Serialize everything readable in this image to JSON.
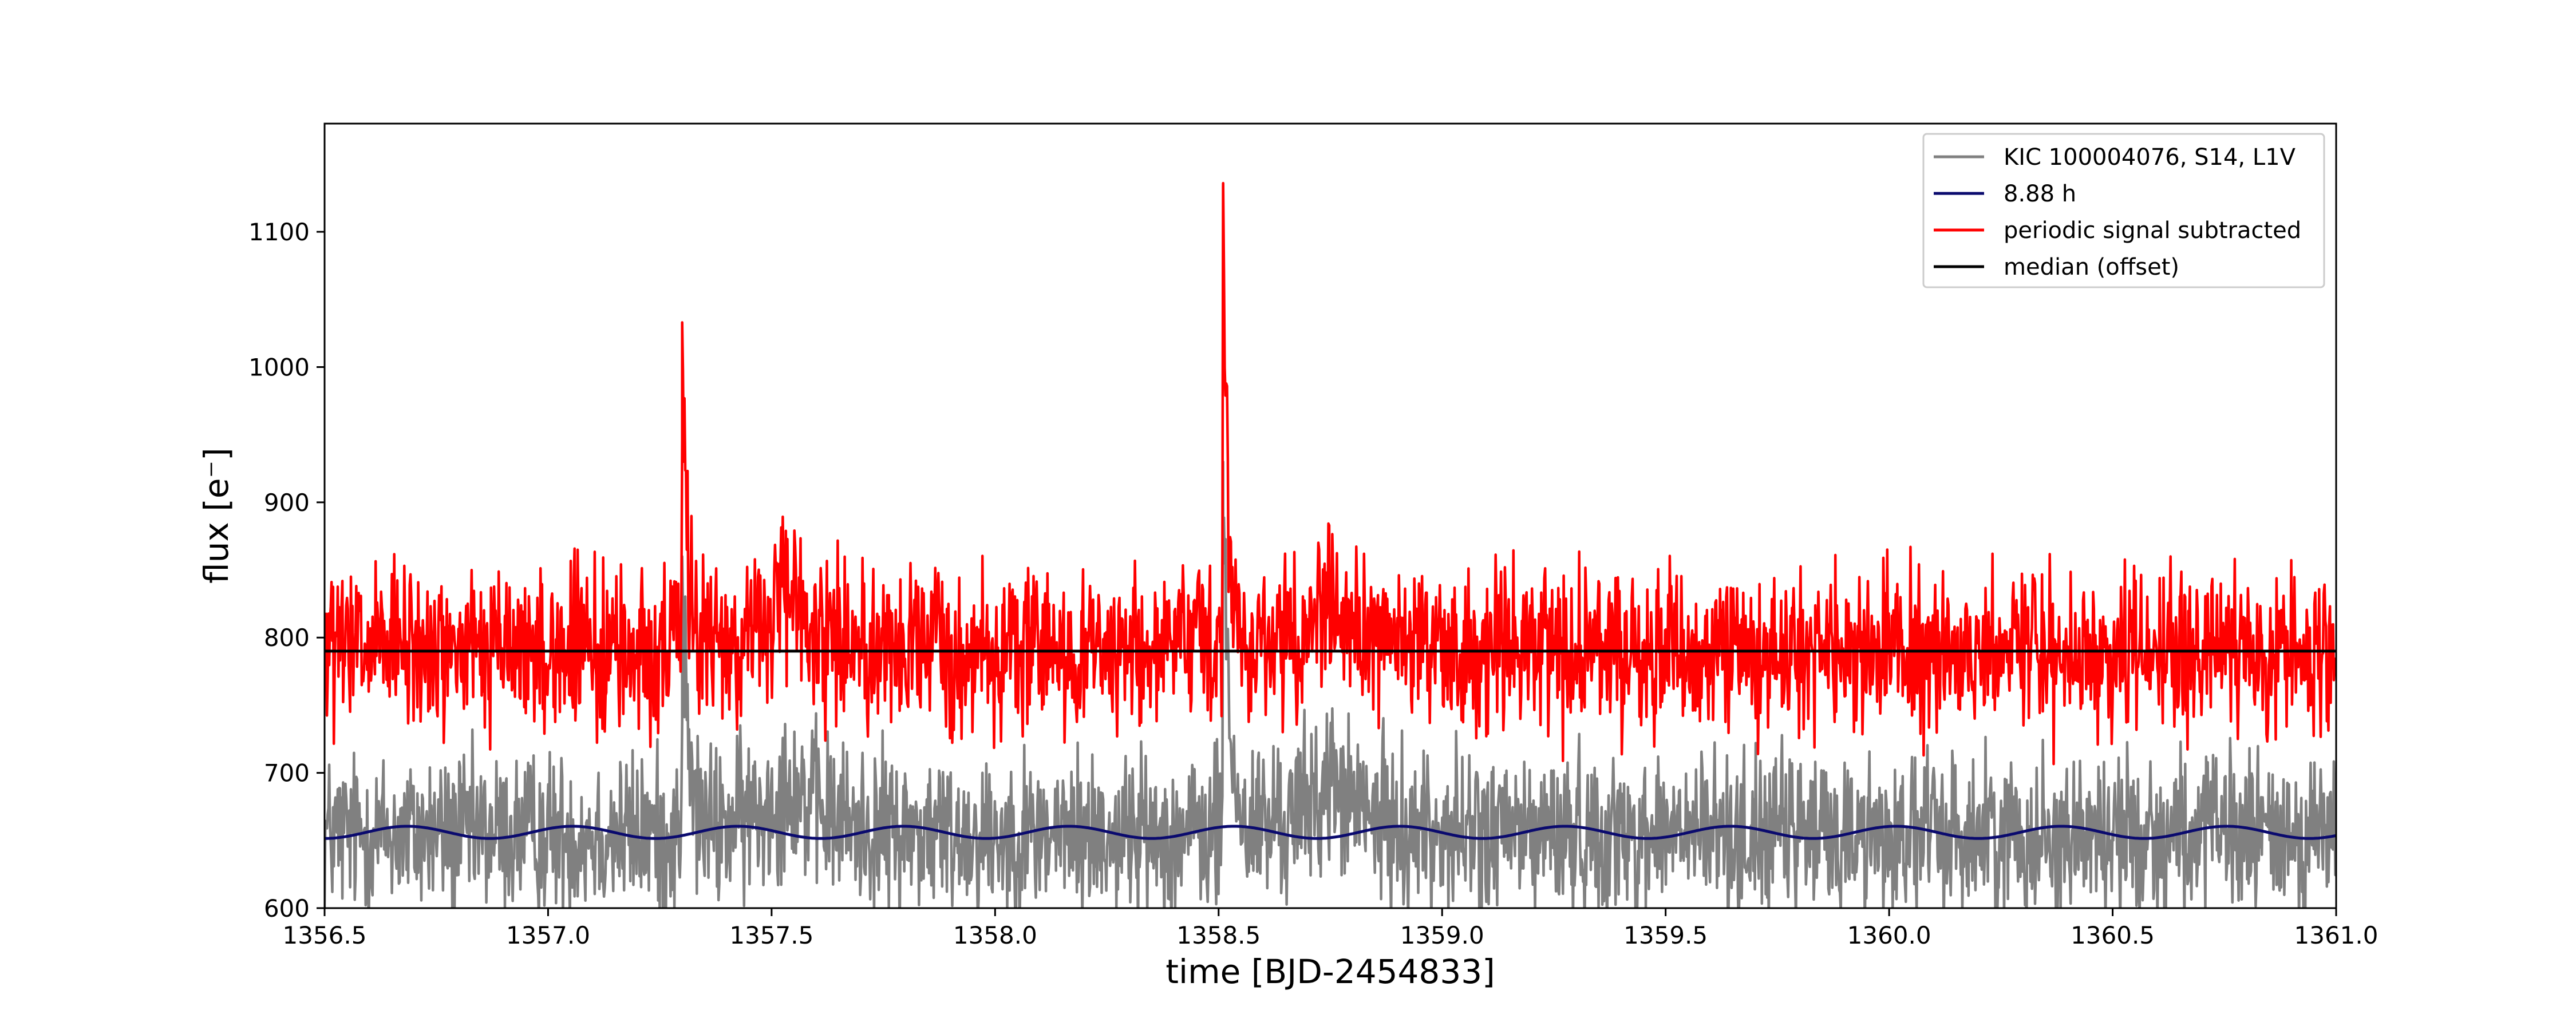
{
  "chart_data": {
    "type": "line",
    "title": "",
    "xlabel": "time [BJD-2454833]",
    "ylabel": "flux [e⁻]",
    "xlim": [
      1356.5,
      1361.0
    ],
    "ylim": [
      600,
      1180
    ],
    "x_ticks": [
      1356.5,
      1357.0,
      1357.5,
      1358.0,
      1358.5,
      1359.0,
      1359.5,
      1360.0,
      1360.5,
      1361.0
    ],
    "x_tick_labels": [
      "1356.5",
      "1357.0",
      "1357.5",
      "1358.0",
      "1358.5",
      "1359.0",
      "1359.5",
      "1360.0",
      "1360.5",
      "1361.0"
    ],
    "y_ticks": [
      600,
      700,
      800,
      900,
      1000,
      1100
    ],
    "y_tick_labels": [
      "600",
      "700",
      "800",
      "900",
      "1000",
      "1100"
    ],
    "grid": false,
    "legend_position": "top-right",
    "series": [
      {
        "name": "KIC 100004076, S14, L1V",
        "color": "#808080",
        "baseline": 655,
        "noise_amplitude": 26,
        "flares": [
          {
            "x": 1357.3,
            "peak": 860
          },
          {
            "x": 1358.51,
            "peak": 930
          }
        ],
        "x": [
          1356.5,
          1356.75,
          1357.0,
          1357.3,
          1357.5,
          1357.75,
          1358.0,
          1358.25,
          1358.51,
          1358.6,
          1358.75,
          1359.0,
          1359.25,
          1359.5,
          1359.75,
          1360.0,
          1360.25,
          1360.5,
          1360.75,
          1361.0
        ],
        "y": [
          655,
          658,
          654,
          860,
          656,
          657,
          655,
          654,
          930,
          700,
          690,
          665,
          660,
          658,
          657,
          656,
          655,
          656,
          657,
          656
        ]
      },
      {
        "name": "8.88 h",
        "color": "#0a0a6e",
        "function": "sinusoid",
        "period_hours": 8.88,
        "mean": 656,
        "amplitude": 4.5,
        "x": [
          1356.5,
          1356.685,
          1356.87,
          1357.055,
          1357.24,
          1357.425,
          1357.61,
          1357.795,
          1357.98,
          1358.165,
          1358.35,
          1358.535,
          1358.72,
          1358.905,
          1359.09,
          1359.275,
          1359.46,
          1359.645,
          1359.83,
          1360.015,
          1360.2,
          1360.385,
          1360.57,
          1360.755,
          1360.94
        ],
        "y": [
          652,
          660,
          652,
          660,
          652,
          660,
          652,
          660,
          652,
          660,
          652,
          660,
          652,
          660,
          652,
          660,
          652,
          660,
          652,
          660,
          652,
          660,
          652,
          660,
          652
        ]
      },
      {
        "name": "periodic signal subtracted",
        "color": "#ff0000",
        "baseline": 790,
        "noise_amplitude": 26,
        "flares": [
          {
            "x": 1357.3,
            "peak": 1033
          },
          {
            "x": 1358.51,
            "peak": 1133
          }
        ],
        "x": [
          1356.5,
          1356.75,
          1357.0,
          1357.3,
          1357.5,
          1357.75,
          1358.0,
          1358.25,
          1358.51,
          1358.6,
          1358.75,
          1359.0,
          1359.25,
          1359.5,
          1359.75,
          1360.0,
          1360.25,
          1360.5,
          1360.75,
          1361.0
        ],
        "y": [
          790,
          792,
          789,
          1033,
          791,
          790,
          789,
          790,
          1133,
          830,
          820,
          795,
          792,
          791,
          790,
          790,
          789,
          790,
          791,
          790
        ]
      },
      {
        "name": "median (offset)",
        "color": "#000000",
        "x": [
          1356.5,
          1361.0
        ],
        "y": [
          790,
          790
        ]
      }
    ]
  }
}
